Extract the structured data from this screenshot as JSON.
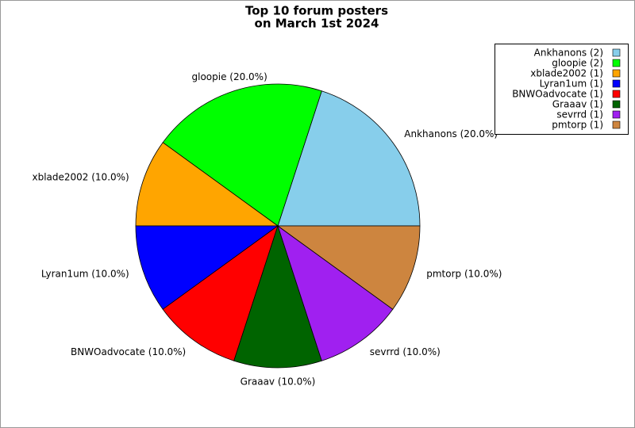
{
  "chart_data": {
    "type": "pie",
    "title": [
      "Top 10 forum posters",
      "on March 1st 2024"
    ],
    "values": [
      20,
      20,
      10,
      10,
      10,
      10,
      10,
      10
    ],
    "value_labels": [
      "Ankhanons (20.0%)",
      "gloopie (20.0%)",
      "xblade2002 (10.0%)",
      "Lyran1um (10.0%)",
      "BNWOadvocate (10.0%)",
      "Graaav (10.0%)",
      "sevrrd (10.0%)",
      "pmtorp (10.0%)"
    ],
    "legend_labels": [
      "Ankhanons (2)",
      "gloopie (2)",
      "xblade2002 (1)",
      "Lyran1um (1)",
      "BNWOadvocate (1)",
      "Graaav (1)",
      "sevrrd (1)",
      "pmtorp (1)"
    ],
    "colors": [
      "#87ceeb",
      "#00ff00",
      "#ffa500",
      "#0000ff",
      "#ff0000",
      "#006400",
      "#a020f0",
      "#cd853f"
    ],
    "legend": "upper right"
  }
}
